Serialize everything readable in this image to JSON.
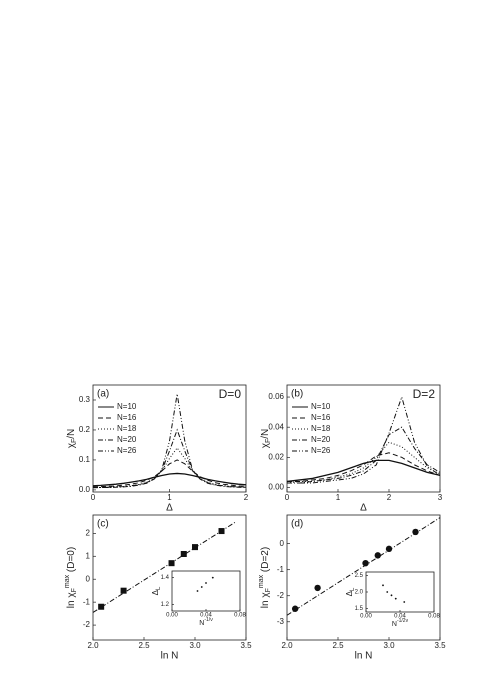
{
  "chart_data": [
    {
      "type": "line",
      "panel_label": "(a)",
      "annotation": "D=0",
      "x_label": "Δ",
      "y_label": [
        {
          "text": "χ"
        },
        {
          "text": "F",
          "pos": "sub"
        },
        {
          "text": "/N"
        }
      ],
      "xlim": [
        0,
        2
      ],
      "xticks": [
        0,
        1,
        2
      ],
      "ylim": [
        -0.007,
        0.35
      ],
      "yticks": [
        {
          "value": 0,
          "label": "0.0"
        },
        0.1,
        0.2,
        0.3
      ],
      "x": [
        0,
        0.1,
        0.2,
        0.3,
        0.4,
        0.5,
        0.6,
        0.7,
        0.8,
        0.9,
        1.0,
        1.1,
        1.2,
        1.3,
        1.4,
        1.5,
        1.6,
        1.7,
        1.8,
        1.9,
        2.0
      ],
      "series": [
        {
          "name": "N=10",
          "dash": "solid",
          "values": [
            0.0136,
            0.015,
            0.017,
            0.019,
            0.022,
            0.026,
            0.03,
            0.035,
            0.042,
            0.048,
            0.053,
            0.055,
            0.053,
            0.048,
            0.042,
            0.035,
            0.03,
            0.026,
            0.022,
            0.019,
            0.017
          ]
        },
        {
          "name": "N=16",
          "dash": "dashed",
          "values": [
            0.01,
            0.011,
            0.012,
            0.013,
            0.016,
            0.019,
            0.024,
            0.032,
            0.044,
            0.063,
            0.087,
            0.1,
            0.087,
            0.063,
            0.044,
            0.032,
            0.024,
            0.019,
            0.016,
            0.013,
            0.012
          ]
        },
        {
          "name": "N=18",
          "dash": "dotted",
          "values": [
            0.008,
            0.008,
            0.009,
            0.01,
            0.011,
            0.014,
            0.018,
            0.025,
            0.038,
            0.063,
            0.105,
            0.14,
            0.105,
            0.063,
            0.038,
            0.025,
            0.018,
            0.014,
            0.011,
            0.01,
            0.009
          ]
        },
        {
          "name": "N=20",
          "dash": "dashdot",
          "values": [
            0.007,
            0.008,
            0.008,
            0.009,
            0.01,
            0.012,
            0.016,
            0.022,
            0.036,
            0.065,
            0.13,
            0.2,
            0.13,
            0.065,
            0.036,
            0.022,
            0.016,
            0.012,
            0.01,
            0.009,
            0.008
          ]
        },
        {
          "name": "N=26",
          "dash": "dashdotdot",
          "values": [
            0.008,
            0.008,
            0.009,
            0.01,
            0.011,
            0.014,
            0.017,
            0.024,
            0.037,
            0.068,
            0.163,
            0.32,
            0.163,
            0.068,
            0.037,
            0.024,
            0.017,
            0.014,
            0.011,
            0.01,
            0.009
          ]
        }
      ]
    },
    {
      "type": "line",
      "panel_label": "(b)",
      "annotation": "D=2",
      "x_label": "Δ",
      "y_label": [
        {
          "text": "χ"
        },
        {
          "text": "F",
          "pos": "sub"
        },
        {
          "text": "/N"
        }
      ],
      "xlim": [
        0,
        3
      ],
      "xticks": [
        0,
        1,
        2,
        3
      ],
      "ylim": [
        -0.003,
        0.068
      ],
      "yticks": [
        {
          "value": 0,
          "label": "0.00"
        },
        {
          "value": 0.02,
          "label": "0.02"
        },
        {
          "value": 0.04,
          "label": "0.04"
        },
        {
          "value": 0.06,
          "label": "0.06"
        }
      ],
      "x": [
        0,
        0.25,
        0.5,
        0.75,
        1,
        1.25,
        1.5,
        1.75,
        2,
        2.25,
        2.5,
        2.75,
        3
      ],
      "series": [
        {
          "name": "N=10",
          "dash": "solid",
          "values": [
            0.004,
            0.005,
            0.006,
            0.008,
            0.01,
            0.013,
            0.016,
            0.018,
            0.018,
            0.016,
            0.013,
            0.01,
            0.008
          ]
        },
        {
          "name": "N=16",
          "dash": "dashed",
          "values": [
            0.004,
            0.004,
            0.005,
            0.006,
            0.008,
            0.011,
            0.015,
            0.021,
            0.023,
            0.02,
            0.015,
            0.011,
            0.008
          ]
        },
        {
          "name": "N=18",
          "dash": "dotted",
          "values": [
            0.003,
            0.004,
            0.004,
            0.005,
            0.007,
            0.009,
            0.013,
            0.02,
            0.03,
            0.027,
            0.02,
            0.013,
            0.009
          ]
        },
        {
          "name": "N=20",
          "dash": "dashdot",
          "values": [
            0.003,
            0.003,
            0.004,
            0.005,
            0.006,
            0.008,
            0.011,
            0.018,
            0.035,
            0.04,
            0.026,
            0.015,
            0.01
          ]
        },
        {
          "name": "N=26",
          "dash": "dashdotdot",
          "values": [
            0.003,
            0.003,
            0.003,
            0.004,
            0.005,
            0.006,
            0.009,
            0.015,
            0.036,
            0.06,
            0.03,
            0.014,
            0.008
          ]
        }
      ]
    },
    {
      "type": "scatter",
      "panel_label": "(c)",
      "marker": "square",
      "x_label": "ln N",
      "y_label": [
        {
          "text": "ln χ"
        },
        {
          "text": "F",
          "pos": "sub"
        },
        {
          "text": "max",
          "pos": "sup"
        },
        {
          "text": " (D=0)"
        }
      ],
      "xlim": [
        2.0,
        3.5
      ],
      "xticks": [
        {
          "value": 2,
          "label": "2.0"
        },
        2.5,
        {
          "value": 3,
          "label": "3.0"
        },
        3.5
      ],
      "ylim": [
        -2.65,
        2.8
      ],
      "yticks": [
        -2,
        -1,
        0,
        1,
        2
      ],
      "x": [
        2.08,
        2.3,
        2.77,
        2.89,
        3.0,
        3.26
      ],
      "values": [
        -1.2,
        -0.5,
        0.7,
        1.1,
        1.4,
        2.1
      ],
      "fit": {
        "x": [
          2.0,
          3.4
        ],
        "values": [
          -1.45,
          2.5
        ]
      },
      "inset": {
        "x_label": "N",
        "x_label_sup": "-1/ν",
        "y_label": "Δ",
        "y_label_sub": "L",
        "xlim": [
          0,
          0.08
        ],
        "xticks": [
          {
            "value": 0,
            "label": "0.00"
          },
          {
            "value": 0.04,
            "label": "0.04"
          },
          {
            "value": 0.08,
            "label": "0.08"
          }
        ],
        "ylim": [
          1.15,
          1.45
        ],
        "yticks": [
          {
            "value": 1.2,
            "label": "1.2"
          },
          {
            "value": 1.4,
            "label": "1.4"
          }
        ],
        "x": [
          0.03,
          0.035,
          0.04,
          0.048
        ],
        "values": [
          1.3,
          1.33,
          1.36,
          1.4
        ]
      }
    },
    {
      "type": "scatter",
      "panel_label": "(d)",
      "marker": "circle",
      "x_label": "ln N",
      "y_label": [
        {
          "text": "ln χ"
        },
        {
          "text": "F",
          "pos": "sub"
        },
        {
          "text": "max",
          "pos": "sup"
        },
        {
          "text": " (D=2)"
        }
      ],
      "xlim": [
        2.0,
        3.5
      ],
      "xticks": [
        {
          "value": 2,
          "label": "2.0"
        },
        2.5,
        {
          "value": 3,
          "label": "3.0"
        },
        3.5
      ],
      "ylim": [
        -3.7,
        1.1
      ],
      "yticks": [
        -3,
        -2,
        -1,
        0
      ],
      "x": [
        2.08,
        2.3,
        2.77,
        2.89,
        3.0,
        3.26
      ],
      "values": [
        -2.5,
        -1.7,
        -0.75,
        -0.45,
        -0.2,
        0.45
      ],
      "fit": {
        "x": [
          2.0,
          3.5
        ],
        "values": [
          -2.75,
          1.0
        ]
      },
      "inset": {
        "x_label": "N",
        "x_label_sup": "-1/2ν",
        "y_label": "Δ",
        "y_label_sub": "L",
        "xlim": [
          0,
          0.08
        ],
        "xticks": [
          {
            "value": 0,
            "label": "0.00"
          },
          {
            "value": 0.04,
            "label": "0.04"
          },
          {
            "value": 0.08,
            "label": "0.08"
          }
        ],
        "ylim": [
          1.4,
          2.6
        ],
        "yticks": [
          {
            "value": 1.5,
            "label": "1.5"
          },
          {
            "value": 2,
            "label": "2.0"
          },
          {
            "value": 2.5,
            "label": "2.5"
          }
        ],
        "x": [
          0.02,
          0.025,
          0.03,
          0.035,
          0.045
        ],
        "values": [
          2.2,
          2.0,
          1.9,
          1.8,
          1.7
        ]
      }
    }
  ]
}
